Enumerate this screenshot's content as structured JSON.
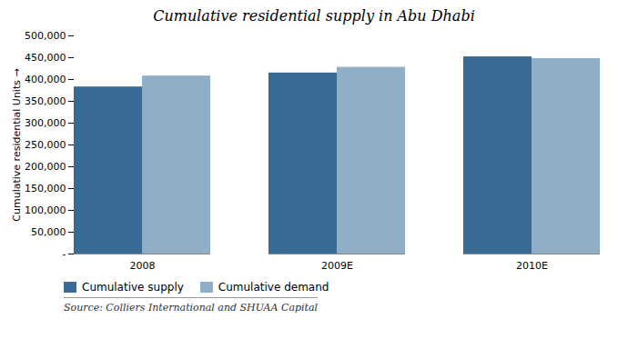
{
  "chart_data": {
    "type": "bar",
    "title": "Cumulative residential supply in Abu Dhabi",
    "ylabel": "Cumulative residential Units",
    "categories": [
      "2008",
      "2009E",
      "2010E"
    ],
    "series": [
      {
        "name": "Cumulative supply",
        "color": "#3A6B96",
        "values": [
          383000,
          415000,
          452000
        ]
      },
      {
        "name": "Cumulative demand",
        "color": "#8FAEC8",
        "values": [
          408000,
          428000,
          448000
        ]
      }
    ],
    "ylim": [
      0,
      500000
    ],
    "yticks": [
      {
        "value": 0,
        "label": "-"
      },
      {
        "value": 50000,
        "label": "50,000"
      },
      {
        "value": 100000,
        "label": "100,000"
      },
      {
        "value": 150000,
        "label": "150,000"
      },
      {
        "value": 200000,
        "label": "200,000"
      },
      {
        "value": 250000,
        "label": "250,000"
      },
      {
        "value": 300000,
        "label": "300,000"
      },
      {
        "value": 350000,
        "label": "350,000"
      },
      {
        "value": 400000,
        "label": "400,000"
      },
      {
        "value": 450000,
        "label": "450,000"
      },
      {
        "value": 500000,
        "label": "500,000"
      }
    ],
    "grid": false,
    "legend": "lower left",
    "source": "Source: Colliers International and SHUAA Capital"
  }
}
